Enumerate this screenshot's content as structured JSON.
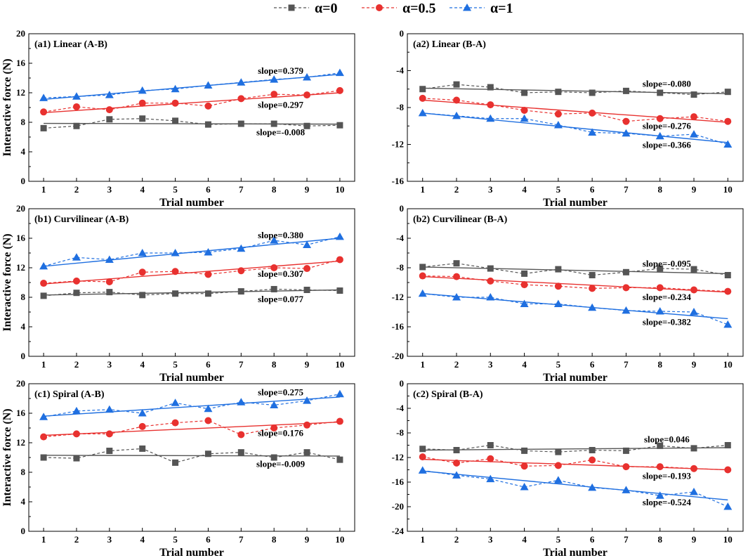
{
  "legend": [
    {
      "label": "α=0",
      "color": "#555555",
      "marker": "square"
    },
    {
      "label": "α=0.5",
      "color": "#e8312f",
      "marker": "circle"
    },
    {
      "label": "α=1",
      "color": "#1f6fe0",
      "marker": "triangle"
    }
  ],
  "chart_data": [
    {
      "type": "line",
      "title": "(a1) Linear (A-B)",
      "xlabel": "Trial number",
      "ylabel": "Interactive force (N)",
      "x": [
        1,
        2,
        3,
        4,
        5,
        6,
        7,
        8,
        9,
        10
      ],
      "ylim": [
        0,
        20
      ],
      "yticks": [
        0,
        4,
        8,
        12,
        16,
        20
      ],
      "xticks": [
        1,
        2,
        3,
        4,
        5,
        6,
        7,
        8,
        9,
        10
      ],
      "series": [
        {
          "name": "α=0",
          "values": [
            7.2,
            7.5,
            8.4,
            8.5,
            8.2,
            7.7,
            7.8,
            7.8,
            7.5,
            7.6
          ],
          "fit": [
            7.85,
            7.75
          ],
          "slope_label": "slope=-0.008"
        },
        {
          "name": "α=0.5",
          "values": [
            9.4,
            10.1,
            9.7,
            10.6,
            10.6,
            10.2,
            11.2,
            11.8,
            11.7,
            12.3
          ],
          "fit": [
            9.3,
            12.0
          ],
          "slope_label": "slope=0.297"
        },
        {
          "name": "α=1",
          "values": [
            11.3,
            11.5,
            11.7,
            12.3,
            12.5,
            13.0,
            13.4,
            13.8,
            14.1,
            14.7
          ],
          "fit": [
            11.1,
            14.5
          ],
          "slope_label": "slope=0.379"
        }
      ]
    },
    {
      "type": "line",
      "title": "(a2) Linear (B-A)",
      "xlabel": "",
      "ylabel": "",
      "x": [
        1,
        2,
        3,
        4,
        5,
        6,
        7,
        8,
        9,
        10
      ],
      "ylim": [
        -16,
        0
      ],
      "yticks": [
        -16,
        -12,
        -8,
        -4,
        0
      ],
      "xticks": [
        1,
        2,
        3,
        4,
        5,
        6,
        7,
        8,
        9,
        10
      ],
      "series": [
        {
          "name": "α=0",
          "values": [
            -6.0,
            -5.5,
            -5.8,
            -6.4,
            -6.3,
            -6.4,
            -6.2,
            -6.4,
            -6.6,
            -6.3
          ],
          "fit": [
            -5.9,
            -6.5
          ],
          "slope_label": "slope=-0.080"
        },
        {
          "name": "α=0.5",
          "values": [
            -7.0,
            -7.2,
            -7.7,
            -8.3,
            -8.7,
            -8.6,
            -9.5,
            -9.2,
            -9.0,
            -9.5
          ],
          "fit": [
            -7.2,
            -9.6
          ],
          "slope_label": "slope=-0.276"
        },
        {
          "name": "α=1",
          "values": [
            -8.6,
            -8.9,
            -9.2,
            -9.2,
            -9.9,
            -10.7,
            -10.8,
            -11.1,
            -10.9,
            -12.0
          ],
          "fit": [
            -8.6,
            -11.8
          ],
          "slope_label": "slope=-0.366"
        }
      ]
    },
    {
      "type": "line",
      "title": "(b1) Curvilinear (A-B)",
      "xlabel": "Trial number",
      "ylabel": "Interactive force (N)",
      "x": [
        1,
        2,
        3,
        4,
        5,
        6,
        7,
        8,
        9,
        10
      ],
      "ylim": [
        0,
        20
      ],
      "yticks": [
        0,
        4,
        8,
        12,
        16,
        20
      ],
      "xticks": [
        1,
        2,
        3,
        4,
        5,
        6,
        7,
        8,
        9,
        10
      ],
      "series": [
        {
          "name": "α=0",
          "values": [
            8.2,
            8.6,
            8.7,
            8.3,
            8.5,
            8.5,
            8.8,
            9.1,
            9.0,
            8.9
          ],
          "fit": [
            8.3,
            9.0
          ],
          "slope_label": "slope=0.077"
        },
        {
          "name": "α=0.5",
          "values": [
            9.9,
            10.2,
            10.1,
            11.4,
            11.5,
            11.1,
            11.6,
            12.0,
            11.9,
            13.1
          ],
          "fit": [
            9.8,
            12.9
          ],
          "slope_label": "slope=0.307"
        },
        {
          "name": "α=1",
          "values": [
            12.2,
            13.4,
            13.1,
            14.0,
            14.0,
            14.1,
            14.6,
            15.7,
            15.1,
            16.2
          ],
          "fit": [
            12.2,
            16.0
          ],
          "slope_label": "slope=0.380"
        }
      ]
    },
    {
      "type": "line",
      "title": "(b2) Curvilinear (B-A)",
      "xlabel": "",
      "ylabel": "",
      "x": [
        1,
        2,
        3,
        4,
        5,
        6,
        7,
        8,
        9,
        10
      ],
      "ylim": [
        -20,
        0
      ],
      "yticks": [
        -20,
        -16,
        -12,
        -8,
        -4,
        0
      ],
      "xticks": [
        1,
        2,
        3,
        4,
        5,
        6,
        7,
        8,
        9,
        10
      ],
      "series": [
        {
          "name": "α=0",
          "values": [
            -7.9,
            -7.4,
            -8.1,
            -8.8,
            -8.2,
            -9.0,
            -8.6,
            -8.1,
            -8.2,
            -9.0
          ],
          "fit": [
            -7.9,
            -8.8
          ],
          "slope_label": "slope=-0.095"
        },
        {
          "name": "α=0.5",
          "values": [
            -9.1,
            -9.2,
            -9.8,
            -10.3,
            -10.5,
            -10.8,
            -10.7,
            -10.7,
            -11.0,
            -11.2
          ],
          "fit": [
            -9.2,
            -11.3
          ],
          "slope_label": "slope=-0.234"
        },
        {
          "name": "α=1",
          "values": [
            -11.5,
            -12.0,
            -12.0,
            -12.9,
            -12.9,
            -13.4,
            -13.8,
            -13.9,
            -14.0,
            -15.7
          ],
          "fit": [
            -11.5,
            -14.9
          ],
          "slope_label": "slope=-0.382"
        }
      ]
    },
    {
      "type": "line",
      "title": "(c1) Spiral (A-B)",
      "xlabel": "Trial number",
      "ylabel": "Interactive force (N)",
      "x": [
        1,
        2,
        3,
        4,
        5,
        6,
        7,
        8,
        9,
        10
      ],
      "ylim": [
        0,
        20
      ],
      "yticks": [
        0,
        4,
        8,
        12,
        16,
        20
      ],
      "xticks": [
        1,
        2,
        3,
        4,
        5,
        6,
        7,
        8,
        9,
        10
      ],
      "series": [
        {
          "name": "α=0",
          "values": [
            10.0,
            9.9,
            10.9,
            11.2,
            9.3,
            10.5,
            10.7,
            10.0,
            10.7,
            9.7
          ],
          "fit": [
            10.3,
            10.2
          ],
          "slope_label": "slope=-0.009"
        },
        {
          "name": "α=0.5",
          "values": [
            12.8,
            13.2,
            13.2,
            14.2,
            14.7,
            15.0,
            13.1,
            14.0,
            14.4,
            14.9
          ],
          "fit": [
            13.0,
            14.8
          ],
          "slope_label": "slope=0.176"
        },
        {
          "name": "α=1",
          "values": [
            15.5,
            16.3,
            16.5,
            16.0,
            17.4,
            16.6,
            17.5,
            17.1,
            17.7,
            18.6
          ],
          "fit": [
            15.6,
            18.2
          ],
          "slope_label": "slope=0.275"
        }
      ]
    },
    {
      "type": "line",
      "title": "(c2) Spiral (B-A)",
      "xlabel": "",
      "ylabel": "",
      "x": [
        1,
        2,
        3,
        4,
        5,
        6,
        7,
        8,
        9,
        10
      ],
      "ylim": [
        -24,
        0
      ],
      "yticks": [
        -24,
        -20,
        -16,
        -12,
        -8,
        -4,
        0
      ],
      "xticks": [
        1,
        2,
        3,
        4,
        5,
        6,
        7,
        8,
        9,
        10
      ],
      "series": [
        {
          "name": "α=0",
          "values": [
            -10.6,
            -10.8,
            -10.0,
            -10.9,
            -11.1,
            -10.8,
            -10.9,
            -10.1,
            -10.5,
            -10.0
          ],
          "fit": [
            -10.8,
            -10.4
          ],
          "slope_label": "slope=0.046"
        },
        {
          "name": "α=0.5",
          "values": [
            -11.9,
            -12.9,
            -12.2,
            -13.4,
            -13.3,
            -12.4,
            -13.5,
            -13.5,
            -13.8,
            -14.0
          ],
          "fit": [
            -12.3,
            -14.0
          ],
          "slope_label": "slope=-0.193"
        },
        {
          "name": "α=1",
          "values": [
            -14.1,
            -14.9,
            -15.5,
            -16.8,
            -15.7,
            -16.9,
            -17.3,
            -18.2,
            -17.6,
            -20.0
          ],
          "fit": [
            -14.2,
            -18.9
          ],
          "slope_label": "slope=-0.524"
        }
      ]
    }
  ]
}
